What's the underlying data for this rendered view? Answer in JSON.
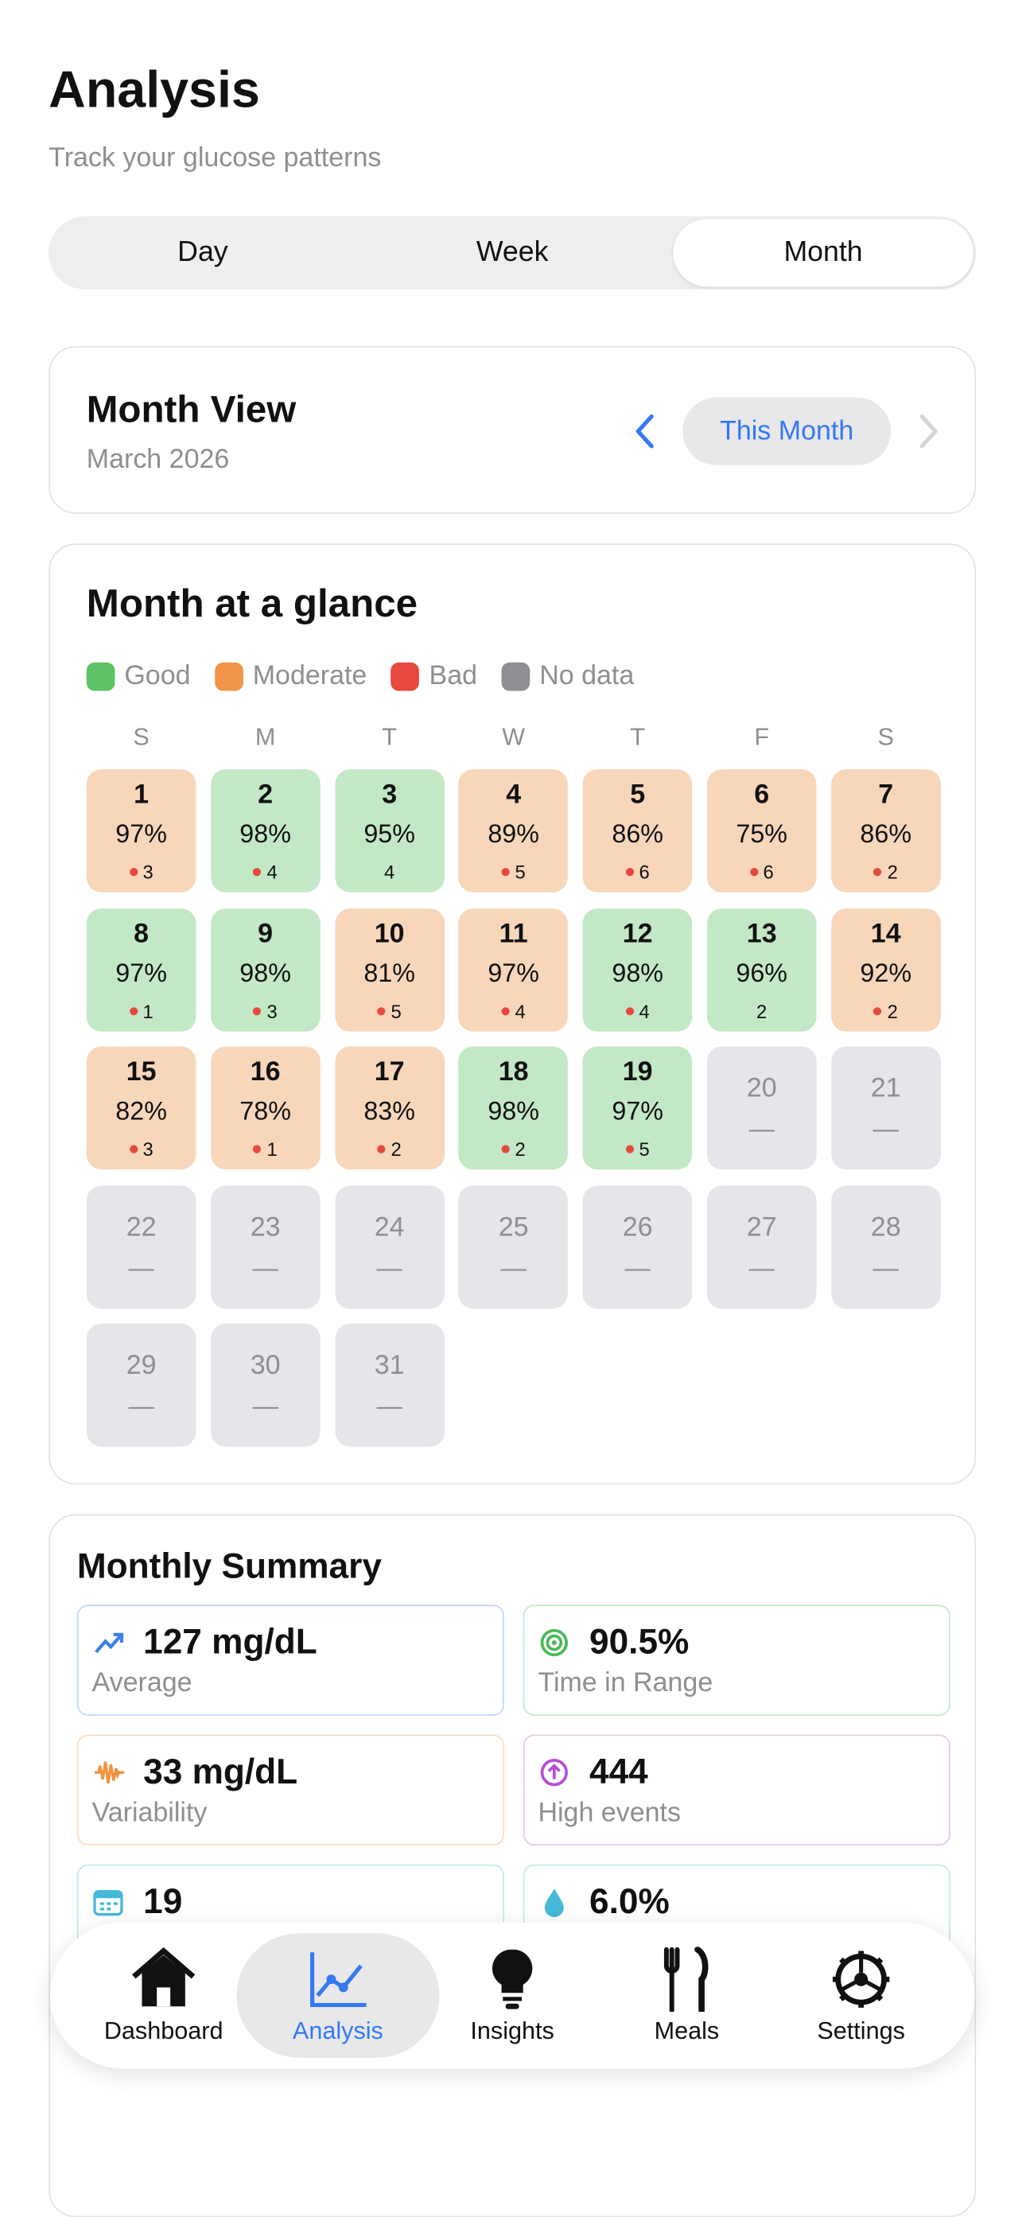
{
  "header": {
    "title": "Analysis",
    "subtitle": "Track your glucose patterns"
  },
  "tabs": {
    "items": [
      "Day",
      "Week",
      "Month"
    ],
    "active": 2
  },
  "month_view": {
    "title": "Month View",
    "subtitle": "March 2026",
    "button": "This Month"
  },
  "calendar": {
    "title": "Month at a glance",
    "legend": [
      {
        "label": "Good",
        "color": "#5ec267"
      },
      {
        "label": "Moderate",
        "color": "#f0954a"
      },
      {
        "label": "Bad",
        "color": "#e8493f"
      },
      {
        "label": "No data",
        "color": "#8e8e93"
      }
    ],
    "weekdays": [
      "S",
      "M",
      "T",
      "W",
      "T",
      "F",
      "S"
    ],
    "days": [
      {
        "day": "1",
        "pct": "97%",
        "events": "3",
        "status": "moderate",
        "dot": true
      },
      {
        "day": "2",
        "pct": "98%",
        "events": "4",
        "status": "good",
        "dot": true
      },
      {
        "day": "3",
        "pct": "95%",
        "events": "4",
        "status": "good",
        "dot": false
      },
      {
        "day": "4",
        "pct": "89%",
        "events": "5",
        "status": "moderate",
        "dot": true
      },
      {
        "day": "5",
        "pct": "86%",
        "events": "6",
        "status": "moderate",
        "dot": true
      },
      {
        "day": "6",
        "pct": "75%",
        "events": "6",
        "status": "moderate",
        "dot": true
      },
      {
        "day": "7",
        "pct": "86%",
        "events": "2",
        "status": "moderate",
        "dot": true
      },
      {
        "day": "8",
        "pct": "97%",
        "events": "1",
        "status": "good",
        "dot": true
      },
      {
        "day": "9",
        "pct": "98%",
        "events": "3",
        "status": "good",
        "dot": true
      },
      {
        "day": "10",
        "pct": "81%",
        "events": "5",
        "status": "moderate",
        "dot": true
      },
      {
        "day": "11",
        "pct": "97%",
        "events": "4",
        "status": "moderate",
        "dot": true
      },
      {
        "day": "12",
        "pct": "98%",
        "events": "4",
        "status": "good",
        "dot": true
      },
      {
        "day": "13",
        "pct": "96%",
        "events": "2",
        "status": "good",
        "dot": false
      },
      {
        "day": "14",
        "pct": "92%",
        "events": "2",
        "status": "moderate",
        "dot": true
      },
      {
        "day": "15",
        "pct": "82%",
        "events": "3",
        "status": "moderate",
        "dot": true
      },
      {
        "day": "16",
        "pct": "78%",
        "events": "1",
        "status": "moderate",
        "dot": true
      },
      {
        "day": "17",
        "pct": "83%",
        "events": "2",
        "status": "moderate",
        "dot": true
      },
      {
        "day": "18",
        "pct": "98%",
        "events": "2",
        "status": "good",
        "dot": true
      },
      {
        "day": "19",
        "pct": "97%",
        "events": "5",
        "status": "good",
        "dot": true
      },
      {
        "day": "20",
        "pct": "—",
        "status": "nodata"
      },
      {
        "day": "21",
        "pct": "—",
        "status": "nodata"
      },
      {
        "day": "22",
        "pct": "—",
        "status": "nodata"
      },
      {
        "day": "23",
        "pct": "—",
        "status": "nodata"
      },
      {
        "day": "24",
        "pct": "—",
        "status": "nodata"
      },
      {
        "day": "25",
        "pct": "—",
        "status": "nodata"
      },
      {
        "day": "26",
        "pct": "—",
        "status": "nodata"
      },
      {
        "day": "27",
        "pct": "—",
        "status": "nodata"
      },
      {
        "day": "28",
        "pct": "—",
        "status": "nodata"
      },
      {
        "day": "29",
        "pct": "—",
        "status": "nodata"
      },
      {
        "day": "30",
        "pct": "—",
        "status": "nodata"
      },
      {
        "day": "31",
        "pct": "—",
        "status": "nodata"
      }
    ]
  },
  "summary": {
    "title": "Monthly Summary",
    "items": [
      {
        "value": "127 mg/dL",
        "label": "Average",
        "color": "#3b82e6"
      },
      {
        "value": "90.5%",
        "label": "Time in Range",
        "color": "#4cb857"
      },
      {
        "value": "33 mg/dL",
        "label": "Variability",
        "color": "#ef9440"
      },
      {
        "value": "444",
        "label": "High events",
        "color": "#b44fd6"
      },
      {
        "value": "19",
        "color": "#45b9d8"
      },
      {
        "value": "6.0%",
        "color": "#45b9d8"
      }
    ]
  },
  "nav": {
    "items": [
      "Dashboard",
      "Analysis",
      "Insights",
      "Meals",
      "Settings"
    ],
    "active": 1
  }
}
